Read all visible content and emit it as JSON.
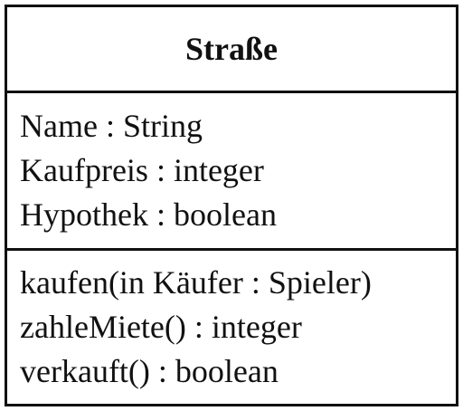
{
  "uml_class": {
    "name": "Straße",
    "attributes": [
      "Name : String",
      "Kaufpreis : integer",
      "Hypothek : boolean"
    ],
    "operations": [
      "kaufen(in Käufer : Spieler)",
      "zahleMiete() : integer",
      "verkauft() : boolean"
    ]
  }
}
